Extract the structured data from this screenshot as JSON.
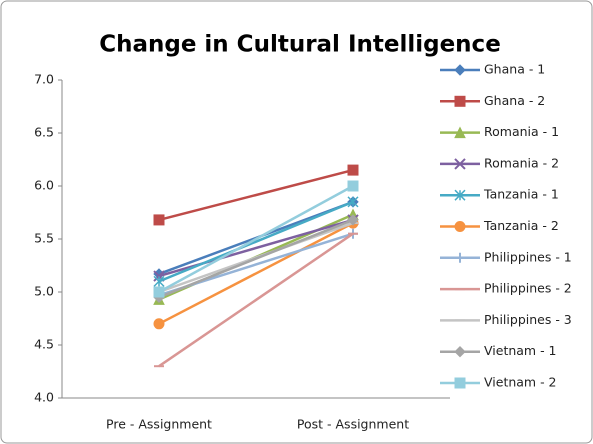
{
  "chart_data": {
    "type": "line",
    "title": "Change in Cultural Intelligence",
    "categories": [
      "Pre - Assignment",
      "Post - Assignment"
    ],
    "ylim": [
      4.0,
      7.0
    ],
    "yticks": [
      {
        "value": 4.0,
        "label": "4.0"
      },
      {
        "value": 4.5,
        "label": "4.5"
      },
      {
        "value": 5.0,
        "label": "5.0"
      },
      {
        "value": 5.5,
        "label": "5.5"
      },
      {
        "value": 6.0,
        "label": "6.0"
      },
      {
        "value": 6.5,
        "label": "6.5"
      },
      {
        "value": 7.0,
        "label": "7.0"
      }
    ],
    "grid": false,
    "legend": "right",
    "series": [
      {
        "name": "Ghana - 1",
        "color": "#4a7ebb",
        "marker": "diamond",
        "values": [
          5.17,
          5.85
        ]
      },
      {
        "name": "Ghana - 2",
        "color": "#be4b48",
        "marker": "square",
        "values": [
          5.68,
          6.15
        ]
      },
      {
        "name": "Romania - 1",
        "color": "#98b954",
        "marker": "triangle",
        "values": [
          4.93,
          5.73
        ]
      },
      {
        "name": "Romania - 2",
        "color": "#7d60a0",
        "marker": "x",
        "values": [
          5.15,
          5.68
        ]
      },
      {
        "name": "Tanzania - 1",
        "color": "#46aac5",
        "marker": "star",
        "values": [
          5.1,
          5.85
        ]
      },
      {
        "name": "Tanzania - 2",
        "color": "#f69240",
        "marker": "circle",
        "values": [
          4.7,
          5.65
        ]
      },
      {
        "name": "Philippines - 1",
        "color": "#95b3d7",
        "marker": "plus",
        "values": [
          4.97,
          5.55
        ]
      },
      {
        "name": "Philippines - 2",
        "color": "#d99694",
        "marker": "dash",
        "values": [
          4.3,
          5.55
        ]
      },
      {
        "name": "Philippines - 3",
        "color": "#c4c4c4",
        "marker": "dash",
        "values": [
          5.0,
          5.65
        ]
      },
      {
        "name": "Vietnam - 1",
        "color": "#a5a5a5",
        "marker": "diamond",
        "values": [
          4.95,
          5.68
        ]
      },
      {
        "name": "Vietnam - 2",
        "color": "#93cddd",
        "marker": "square",
        "values": [
          5.0,
          6.0
        ]
      }
    ]
  }
}
